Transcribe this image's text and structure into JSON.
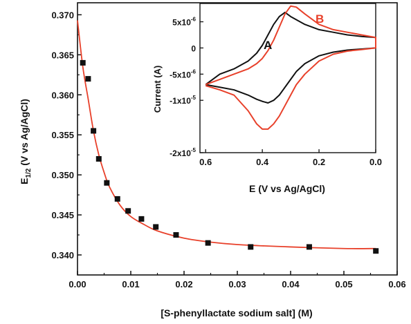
{
  "chart_data": [
    {
      "type": "scatter",
      "title": "",
      "xlabel": "[S-phenyllactate sodium salt] (M)",
      "ylabel": {
        "prefix": "E",
        "sub": "1/2",
        "suffix": " (V vs Ag/AgCl)"
      },
      "xlim": [
        0.0,
        0.06
      ],
      "ylim": [
        0.3375,
        0.3715
      ],
      "xticks": [
        "0.00",
        "0.01",
        "0.02",
        "0.03",
        "0.04",
        "0.05",
        "0.06"
      ],
      "yticks": [
        "0.340",
        "0.345",
        "0.350",
        "0.355",
        "0.360",
        "0.365",
        "0.370"
      ],
      "points": {
        "x": [
          0.001,
          0.002,
          0.003,
          0.004,
          0.0055,
          0.0075,
          0.0095,
          0.012,
          0.0147,
          0.0185,
          0.0245,
          0.0325,
          0.0435,
          0.056
        ],
        "y": [
          0.364,
          0.362,
          0.3555,
          0.352,
          0.349,
          0.347,
          0.3455,
          0.3445,
          0.3435,
          0.3425,
          0.3415,
          0.341,
          0.341,
          0.3405
        ]
      },
      "fit": {
        "x": [
          0.0,
          0.001,
          0.002,
          0.003,
          0.004,
          0.005,
          0.006,
          0.008,
          0.01,
          0.0125,
          0.015,
          0.02,
          0.025,
          0.03,
          0.04,
          0.05,
          0.056
        ],
        "y": [
          0.3693,
          0.3635,
          0.3595,
          0.3555,
          0.3525,
          0.3503,
          0.3485,
          0.3462,
          0.3448,
          0.3438,
          0.343,
          0.3421,
          0.3416,
          0.3413,
          0.341,
          0.3408,
          0.3408
        ]
      },
      "colors": {
        "points": "#111111",
        "fit": "#e8402a",
        "axis": "#111111"
      }
    },
    {
      "type": "line",
      "title": "",
      "xlabel": "E (V vs Ag/AgCl)",
      "ylabel": "Current (A)",
      "xlim": [
        0.62,
        0.0
      ],
      "ylim": [
        -2e-05,
        8.5e-06
      ],
      "xticks": [
        "0.6",
        "0.4",
        "0.2",
        "0.0"
      ],
      "yticks": [
        {
          "base": "5x10",
          "exp": "-6",
          "value": 5e-06
        },
        {
          "base": "0",
          "exp": "",
          "value": 0
        },
        {
          "base": "-5x10",
          "exp": "-6",
          "value": -5e-06
        },
        {
          "base": "-1x10",
          "exp": "-5",
          "value": -1e-05
        },
        {
          "base": "-2x10",
          "exp": "-5",
          "value": -2e-05
        }
      ],
      "series": [
        {
          "name": "A",
          "color": "#111111",
          "x": [
            0.6,
            0.55,
            0.5,
            0.45,
            0.42,
            0.4,
            0.38,
            0.36,
            0.34,
            0.32,
            0.3,
            0.25,
            0.2,
            0.15,
            0.1,
            0.05,
            0.0,
            0.0,
            0.05,
            0.1,
            0.15,
            0.2,
            0.25,
            0.28,
            0.3,
            0.32,
            0.34,
            0.36,
            0.38,
            0.4,
            0.42,
            0.45,
            0.5,
            0.55,
            0.6
          ],
          "y": [
            -7e-06,
            -5e-06,
            -4e-06,
            -2.5e-06,
            -1e-06,
            5e-07,
            2.5e-06,
            4.5e-06,
            6e-06,
            6.8e-06,
            6e-06,
            4.5e-06,
            3.5e-06,
            3e-06,
            2.5e-06,
            2.2e-06,
            2e-06,
            0.0,
            -2e-07,
            -4e-07,
            -8e-07,
            -1.5e-06,
            -3e-06,
            -4.5e-06,
            -6e-06,
            -7.5e-06,
            -9e-06,
            -1e-05,
            -1.05e-05,
            -1.02e-05,
            -9.8e-06,
            -9e-06,
            -8e-06,
            -7.5e-06,
            -7e-06
          ]
        },
        {
          "name": "B",
          "color": "#e8402a",
          "x": [
            0.6,
            0.55,
            0.5,
            0.45,
            0.42,
            0.4,
            0.38,
            0.36,
            0.34,
            0.32,
            0.3,
            0.28,
            0.25,
            0.2,
            0.15,
            0.1,
            0.05,
            0.0,
            0.0,
            0.05,
            0.1,
            0.15,
            0.2,
            0.25,
            0.28,
            0.3,
            0.32,
            0.34,
            0.36,
            0.38,
            0.4,
            0.42,
            0.45,
            0.5,
            0.55,
            0.6
          ],
          "y": [
            -7e-06,
            -6e-06,
            -5e-06,
            -4e-06,
            -3e-06,
            -2e-06,
            -5e-07,
            1.5e-06,
            4e-06,
            6.5e-06,
            8e-06,
            7.8e-06,
            6.5e-06,
            4.5e-06,
            3.5e-06,
            3e-06,
            2.5e-06,
            2e-06,
            0.0,
            -3e-07,
            -6e-07,
            -1.2e-06,
            -2.5e-06,
            -5e-06,
            -7e-06,
            -9e-06,
            -1.1e-05,
            -1.3e-05,
            -1.45e-05,
            -1.55e-05,
            -1.55e-05,
            -1.45e-05,
            -1.2e-05,
            -9e-06,
            -8e-06,
            -7.2e-06
          ]
        }
      ]
    }
  ]
}
